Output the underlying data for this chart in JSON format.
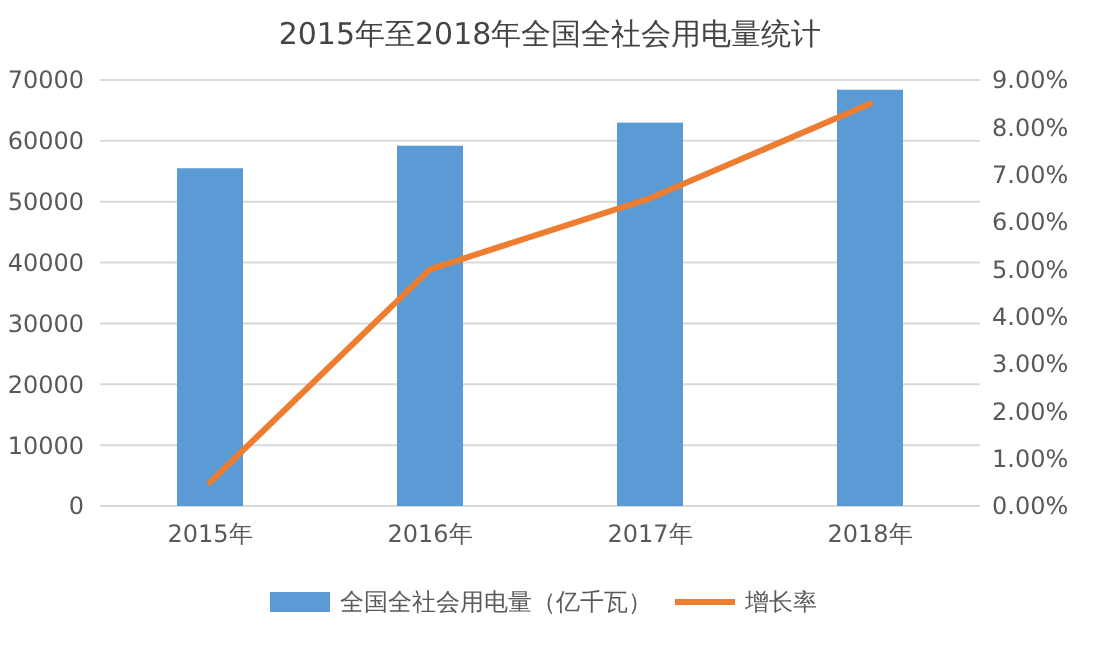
{
  "chart_data": {
    "type": "bar",
    "title": "2015年至2018年全国全社会用电量统计",
    "categories": [
      "2015年",
      "2016年",
      "2017年",
      "2018年"
    ],
    "series": [
      {
        "name": "全国全社会用电量（亿千瓦）",
        "color": "#5b9bd5",
        "values": [
          55500,
          59200,
          63000,
          68400
        ]
      },
      {
        "name": "增长率",
        "type": "line",
        "axis": "y2",
        "color": "#ed7d31",
        "values": [
          0.5,
          5.0,
          6.5,
          8.5
        ]
      }
    ],
    "ylim": [
      0,
      70000
    ],
    "yticks": [
      0,
      10000,
      20000,
      30000,
      40000,
      50000,
      60000,
      70000
    ],
    "y2lim": [
      0,
      9
    ],
    "y2ticks": [
      {
        "value": 0,
        "label": "0.00%"
      },
      {
        "value": 1,
        "label": "1.00%"
      },
      {
        "value": 2,
        "label": "2.00%"
      },
      {
        "value": 3,
        "label": "3.00%"
      },
      {
        "value": 4,
        "label": "4.00%"
      },
      {
        "value": 5,
        "label": "5.00%"
      },
      {
        "value": 6,
        "label": "6.00%"
      },
      {
        "value": 7,
        "label": "7.00%"
      },
      {
        "value": 8,
        "label": "8.00%"
      },
      {
        "value": 9,
        "label": "9.00%"
      }
    ],
    "grid": "y",
    "legend": "bottom",
    "marker": "none"
  }
}
